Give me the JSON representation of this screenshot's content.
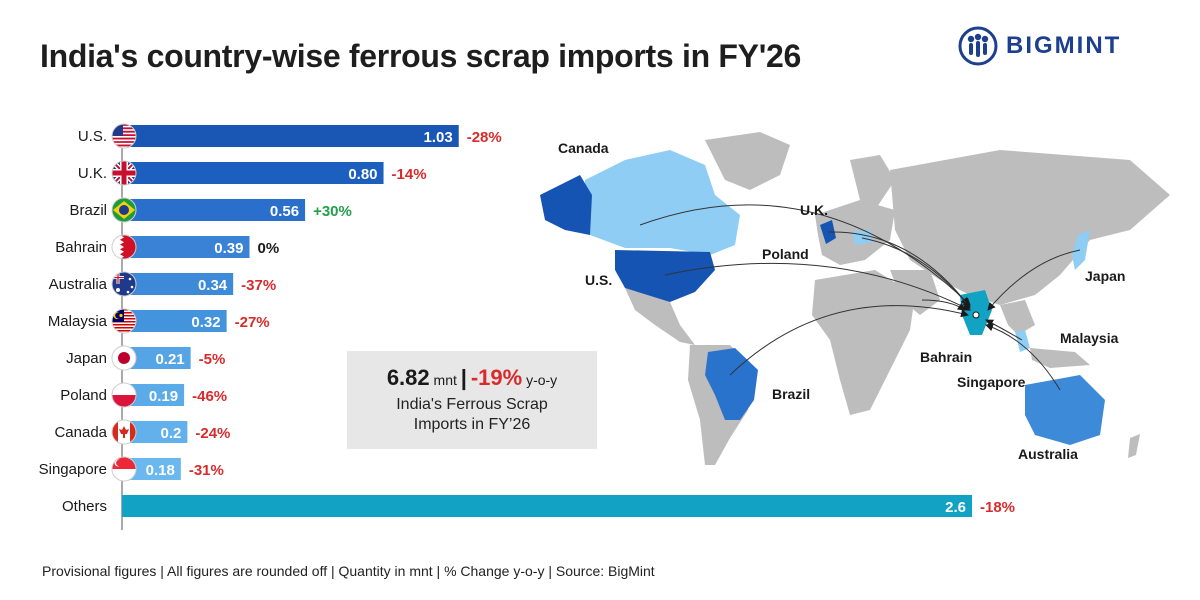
{
  "title": "India's country-wise ferrous scrap imports in FY'26",
  "brand": {
    "name": "BIGMINT",
    "logo_icon": "people-circle-icon",
    "color": "#1d3f8f"
  },
  "stat": {
    "value": "6.82",
    "unit": "mnt",
    "separator": "|",
    "change": "-19%",
    "change_suffix": "y-o-y",
    "line1": "India's Ferrous Scrap",
    "line2": "Imports in FY’26"
  },
  "footer": "Provisional figures | All figures are rounded off | Quantity in mnt | % Change y-o-y | Source: BigMint",
  "colors": {
    "positive": "#22a04b",
    "negative": "#d92b2b",
    "neutral": "#1a1a1a",
    "others_bar": "#12a2c4"
  },
  "chart_data": {
    "type": "bar",
    "orientation": "horizontal",
    "unit": "mnt",
    "categories": [
      "U.S.",
      "U.K.",
      "Brazil",
      "Bahrain",
      "Australia",
      "Malaysia",
      "Japan",
      "Poland",
      "Canada",
      "Singapore",
      "Others"
    ],
    "values": [
      1.03,
      0.8,
      0.56,
      0.39,
      0.34,
      0.32,
      0.21,
      0.19,
      0.2,
      0.18,
      2.6
    ],
    "value_labels": [
      "1.03",
      "0.80",
      "0.56",
      "0.39",
      "0.34",
      "0.32",
      "0.21",
      "0.19",
      "0.2",
      "0.18",
      "2.6"
    ],
    "changes": [
      "-28%",
      "-14%",
      "+30%",
      "0%",
      "-37%",
      "-27%",
      "-5%",
      "-46%",
      "-24%",
      "-31%",
      "-18%"
    ],
    "flags": [
      "us-flag-icon",
      "uk-flag-icon",
      "brazil-flag-icon",
      "bahrain-flag-icon",
      "australia-flag-icon",
      "malaysia-flag-icon",
      "japan-flag-icon",
      "poland-flag-icon",
      "canada-flag-icon",
      "singapore-flag-icon",
      ""
    ],
    "bar_colors": [
      "#1a56b4",
      "#1c5fbf",
      "#2a6fcb",
      "#3a82d6",
      "#3d8ad9",
      "#4493dd",
      "#55a4e6",
      "#5cabe9",
      "#62b1ec",
      "#6bb8ef",
      "#12a2c4"
    ],
    "xlim": [
      0,
      2.6
    ]
  },
  "map": {
    "labels": [
      "Canada",
      "U.K.",
      "Poland",
      "U.S.",
      "Japan",
      "Malaysia",
      "Bahrain",
      "Singapore",
      "Brazil",
      "Australia"
    ]
  }
}
